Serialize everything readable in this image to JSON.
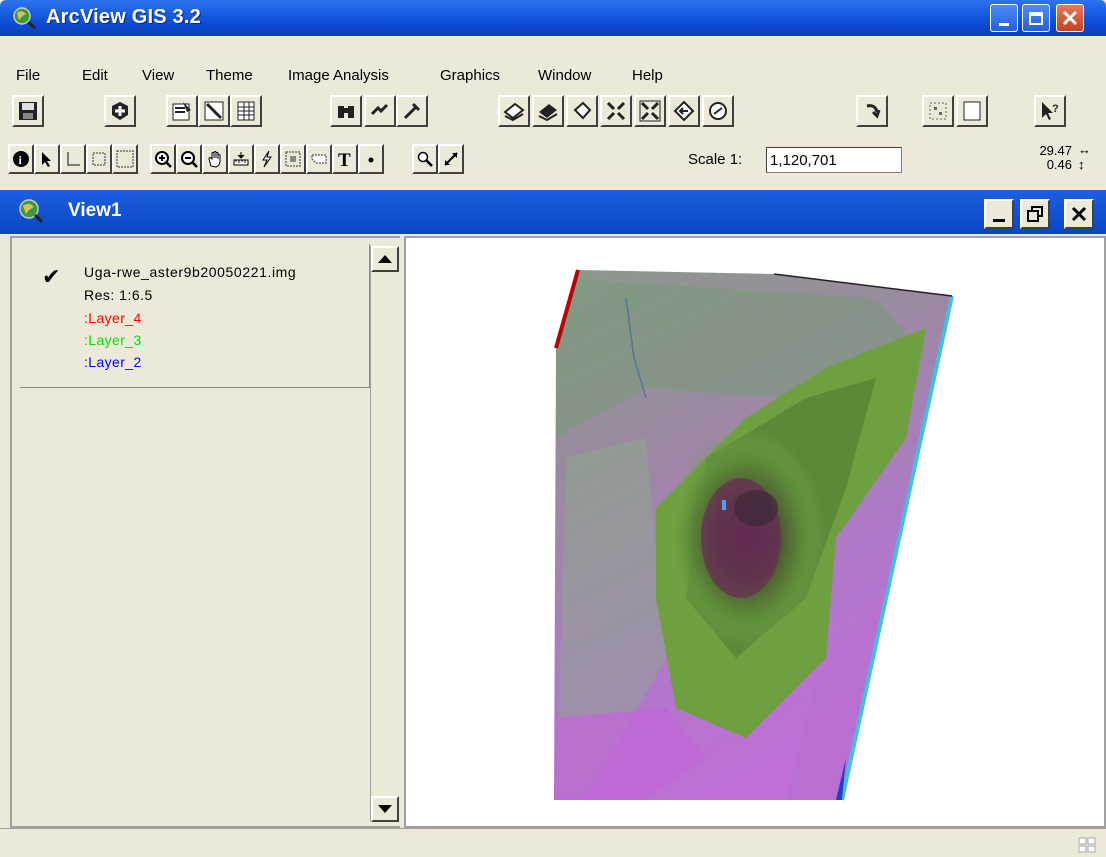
{
  "window": {
    "title": "ArcView GIS 3.2"
  },
  "menu": [
    "File",
    "Edit",
    "View",
    "Theme",
    "Image Analysis",
    "Graphics",
    "Window",
    "Help"
  ],
  "toolbar": {
    "buttons": [
      "save-icon",
      "add-theme-icon",
      "theme-properties-icon",
      "edit-legend-icon",
      "open-theme-table-icon",
      "find-icon",
      "locate-address-icon",
      "query-builder-icon",
      "zoom-to-full-extent-icon",
      "zoom-to-active-themes-icon",
      "zoom-to-selected-icon",
      "zoom-in-icon",
      "zoom-out-icon",
      "zoom-previous-icon",
      "select-features-icon",
      "clear-selected-icon",
      "layout-icon",
      "help-icon"
    ],
    "tools": [
      "identify-icon",
      "pointer-icon",
      "vertex-edit-icon",
      "select-feature-icon",
      "zoom-in-tool-icon",
      "zoom-out-tool-icon",
      "pan-icon",
      "measure-icon",
      "hot-link-icon",
      "area-of-interest-icon",
      "label-icon",
      "text-icon",
      "draw-point-icon",
      "image-pixel-icon",
      "image-stretch-icon"
    ]
  },
  "scale": {
    "label": "Scale 1:",
    "value": "1,120,701"
  },
  "coordinates": {
    "x": "29.47",
    "y": "0.46"
  },
  "view": {
    "title": "View1"
  },
  "toc": {
    "theme": "Uga-rwe_aster9b20050221.img",
    "resolution": "Res: 1:6.5",
    "checked": true,
    "layers": [
      {
        "name": ":Layer_4",
        "color": "#ff0000"
      },
      {
        "name": ":Layer_3",
        "color": "#00e000"
      },
      {
        "name": ":Layer_2",
        "color": "#0000ff"
      }
    ]
  },
  "colors": {
    "titlebar": "#0a49d0",
    "chrome": "#ece9d8",
    "vegetation": "#6fa040",
    "bare_ground": "#c070d8"
  }
}
